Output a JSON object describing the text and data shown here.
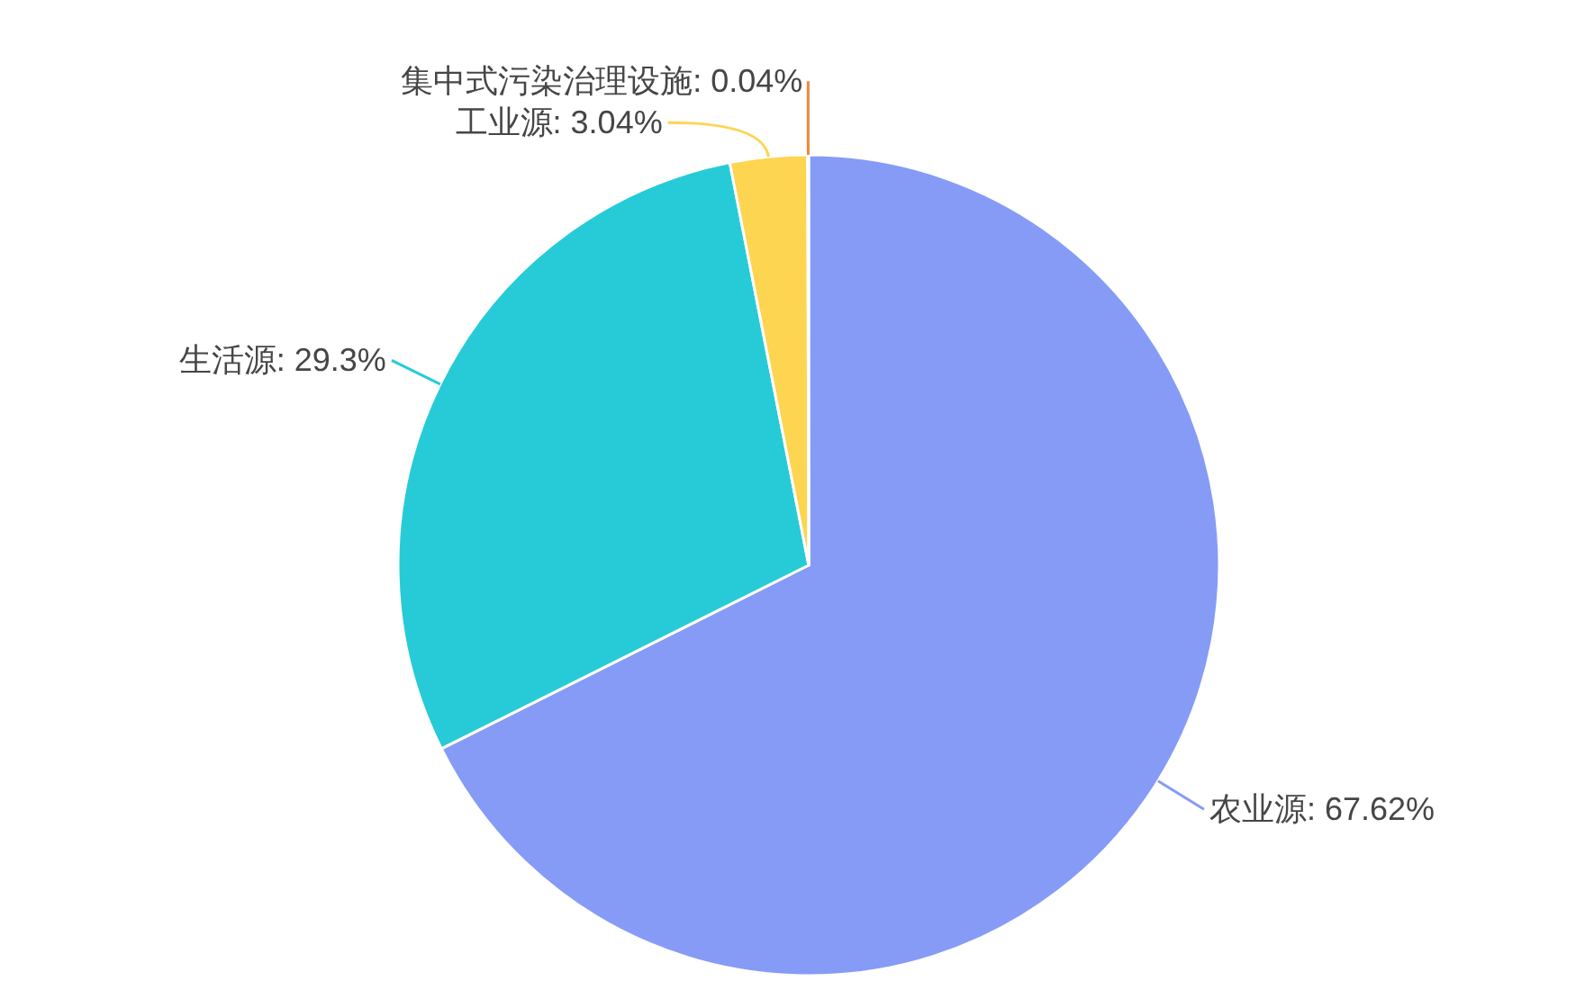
{
  "chart_data": {
    "type": "pie",
    "categories": [
      "农业源",
      "生活源",
      "工业源",
      "集中式污染治理设施"
    ],
    "values": [
      67.62,
      29.3,
      3.04,
      0.04
    ],
    "colors": [
      "#869bf6",
      "#27cbd7",
      "#fdd551",
      "#f3863d"
    ],
    "value_labels": [
      "67.62%",
      "29.3%",
      "3.04%",
      "0.04%"
    ]
  }
}
